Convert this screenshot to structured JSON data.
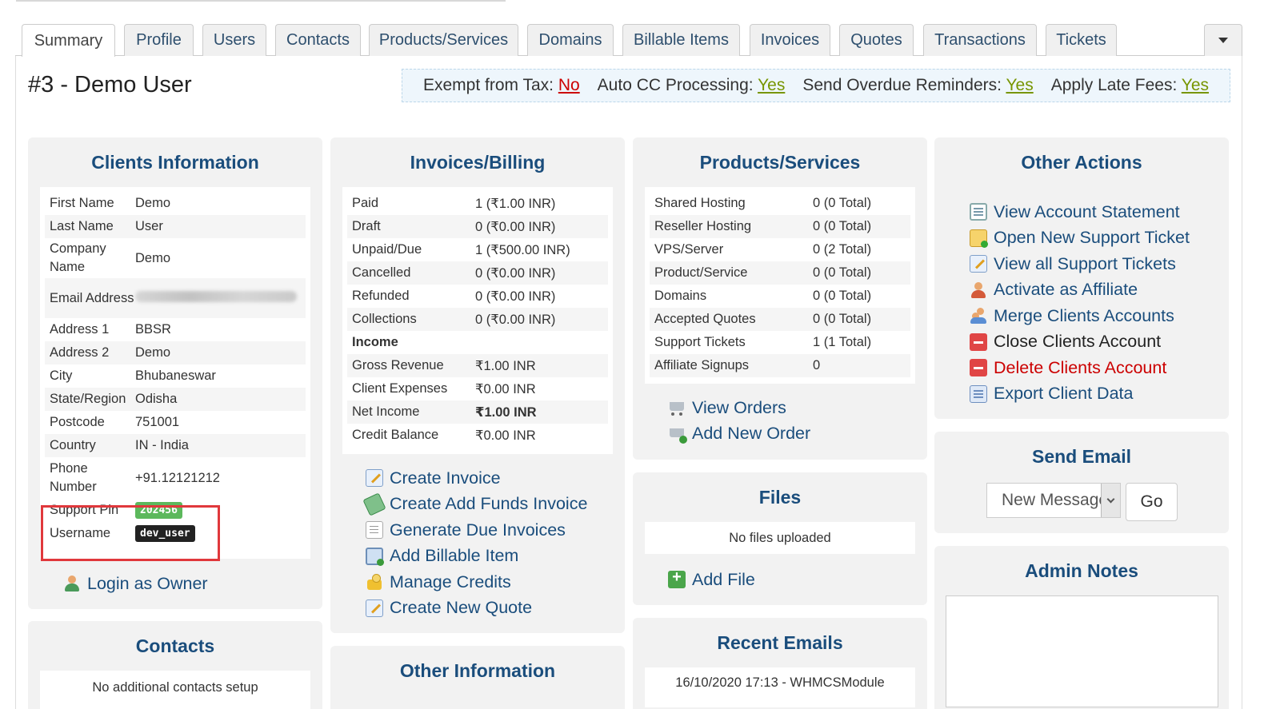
{
  "tabs": [
    {
      "label": "Summary",
      "active": true
    },
    {
      "label": "Profile"
    },
    {
      "label": "Users"
    },
    {
      "label": "Contacts"
    },
    {
      "label": "Products/Services"
    },
    {
      "label": "Domains"
    },
    {
      "label": "Billable Items"
    },
    {
      "label": "Invoices"
    },
    {
      "label": "Quotes"
    },
    {
      "label": "Transactions"
    },
    {
      "label": "Tickets"
    }
  ],
  "header": {
    "title": "#3 - Demo User",
    "flags": [
      {
        "label": "Exempt from Tax:",
        "value": "No"
      },
      {
        "label": "Auto CC Processing:",
        "value": "Yes"
      },
      {
        "label": "Send Overdue Reminders:",
        "value": "Yes"
      },
      {
        "label": "Apply Late Fees:",
        "value": "Yes"
      }
    ]
  },
  "client_info": {
    "title": "Clients Information",
    "rows": [
      {
        "label": "First Name",
        "value": "Demo"
      },
      {
        "label": "Last Name",
        "value": "User"
      },
      {
        "label": "Company Name",
        "value": "Demo"
      },
      {
        "label": "Email Address",
        "value": ""
      },
      {
        "label": "Address 1",
        "value": "BBSR"
      },
      {
        "label": "Address 2",
        "value": "Demo"
      },
      {
        "label": "City",
        "value": "Bhubaneswar"
      },
      {
        "label": "State/Region",
        "value": "Odisha"
      },
      {
        "label": "Postcode",
        "value": "751001"
      },
      {
        "label": "Country",
        "value": "IN - India"
      },
      {
        "label": "Phone Number",
        "value": "+91.12121212"
      }
    ],
    "support_pin_label": "Support Pin",
    "support_pin": "202456",
    "username_label": "Username",
    "username": "dev_user",
    "login_as_owner": "Login as Owner"
  },
  "contacts": {
    "title": "Contacts",
    "empty": "No additional contacts setup"
  },
  "billing": {
    "title": "Invoices/Billing",
    "rows": [
      {
        "label": "Paid",
        "value": "1 (₹1.00 INR)"
      },
      {
        "label": "Draft",
        "value": "0 (₹0.00 INR)"
      },
      {
        "label": "Unpaid/Due",
        "value": "1 (₹500.00 INR)"
      },
      {
        "label": "Cancelled",
        "value": "0 (₹0.00 INR)"
      },
      {
        "label": "Refunded",
        "value": "0 (₹0.00 INR)"
      },
      {
        "label": "Collections",
        "value": "0 (₹0.00 INR)"
      }
    ],
    "income_label": "Income",
    "income_rows": [
      {
        "label": "Gross Revenue",
        "value": "₹1.00 INR"
      },
      {
        "label": "Client Expenses",
        "value": "₹0.00 INR"
      },
      {
        "label": "Net Income",
        "value": "₹1.00 INR"
      },
      {
        "label": "Credit Balance",
        "value": "₹0.00 INR"
      }
    ],
    "actions": [
      {
        "label": "Create Invoice",
        "icon": "invoice-icon"
      },
      {
        "label": "Create Add Funds Invoice",
        "icon": "money-icon"
      },
      {
        "label": "Generate Due Invoices",
        "icon": "page-icon"
      },
      {
        "label": "Add Billable Item",
        "icon": "clock-icon"
      },
      {
        "label": "Manage Credits",
        "icon": "coins-icon"
      },
      {
        "label": "Create New Quote",
        "icon": "quote-icon"
      }
    ]
  },
  "other_information": {
    "title": "Other Information"
  },
  "products": {
    "title": "Products/Services",
    "rows": [
      {
        "label": "Shared Hosting",
        "value": "0 (0 Total)"
      },
      {
        "label": "Reseller Hosting",
        "value": "0 (0 Total)"
      },
      {
        "label": "VPS/Server",
        "value": "0 (2 Total)"
      },
      {
        "label": "Product/Service",
        "value": "0 (0 Total)"
      },
      {
        "label": "Domains",
        "value": "0 (0 Total)"
      },
      {
        "label": "Accepted Quotes",
        "value": "0 (0 Total)"
      },
      {
        "label": "Support Tickets",
        "value": "1 (1 Total)"
      },
      {
        "label": "Affiliate Signups",
        "value": "0"
      }
    ],
    "actions": [
      {
        "label": "View Orders",
        "icon": "cart-icon"
      },
      {
        "label": "Add New Order",
        "icon": "cart-add-icon"
      }
    ]
  },
  "files": {
    "title": "Files",
    "empty": "No files uploaded",
    "add": "Add File"
  },
  "recent_emails": {
    "title": "Recent Emails",
    "first": "16/10/2020 17:13 - WHMCSModule"
  },
  "other_actions": {
    "title": "Other Actions",
    "items": [
      {
        "label": "View Account Statement",
        "icon": "statement-icon",
        "style": "link"
      },
      {
        "label": "Open New Support Ticket",
        "icon": "ticket-icon",
        "style": "link"
      },
      {
        "label": "View all Support Tickets",
        "icon": "edit-icon",
        "style": "link"
      },
      {
        "label": "Activate as Affiliate",
        "icon": "user-icon",
        "style": "link"
      },
      {
        "label": "Merge Clients Accounts",
        "icon": "users-icon",
        "style": "link"
      },
      {
        "label": "Close Clients Account",
        "icon": "stop-icon",
        "style": "dark"
      },
      {
        "label": "Delete Clients Account",
        "icon": "stop-icon",
        "style": "red"
      },
      {
        "label": "Export Client Data",
        "icon": "export-icon",
        "style": "link"
      }
    ]
  },
  "send_email": {
    "title": "Send Email",
    "selected": "New Message",
    "go": "Go"
  },
  "admin_notes": {
    "title": "Admin Notes"
  }
}
